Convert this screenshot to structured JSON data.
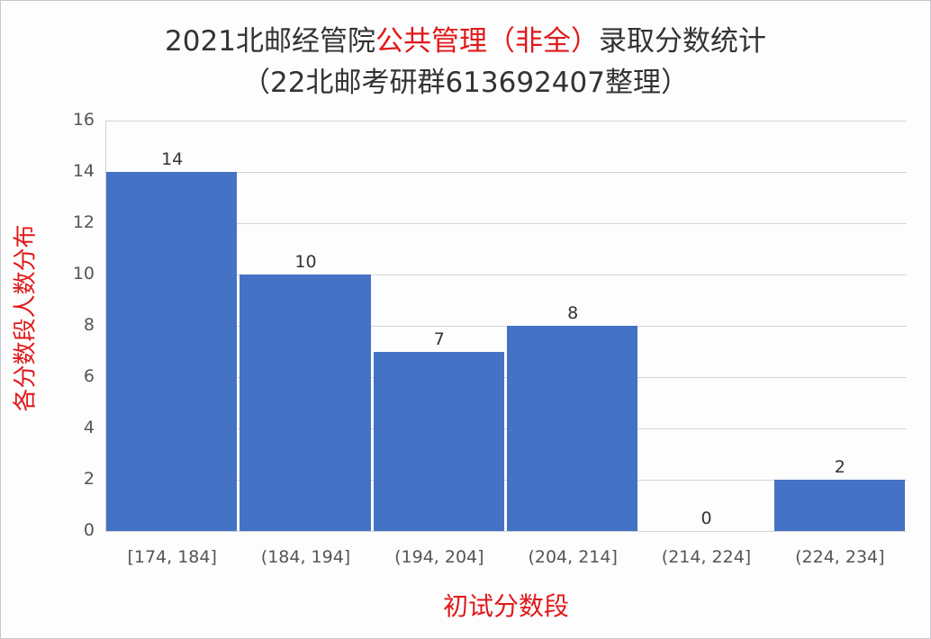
{
  "chart_data": {
    "type": "bar",
    "title_line1": {
      "prefix": "2021北邮经管院",
      "highlight": "公共管理（非全）",
      "suffix": "录取分数统计"
    },
    "title_line2": "（22北邮考研群613692407整理）",
    "xlabel": "初试分数段",
    "ylabel": "各分数段人数分布",
    "categories": [
      "[174, 184]",
      "(184, 194]",
      "(194, 204]",
      "(204, 214]",
      "(214, 224]",
      "(224, 234]"
    ],
    "values": [
      14,
      10,
      7,
      8,
      0,
      2
    ],
    "ylim": [
      0,
      16
    ],
    "yticks": [
      "0",
      "2",
      "4",
      "6",
      "8",
      "10",
      "12",
      "14",
      "16"
    ],
    "grid": true,
    "legend": "none",
    "bar_color": "#4472c4",
    "highlight_color": "#e0191a"
  }
}
